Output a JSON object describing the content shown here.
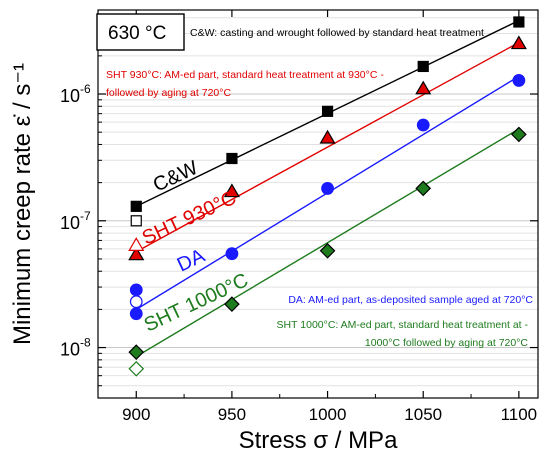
{
  "chart_data": {
    "type": "scatter",
    "xlabel": "Stress σ / MPa",
    "ylabel": "Minimum creep rate  ε̇ / s⁻¹",
    "y_scale": "log",
    "xlim": [
      880,
      1110
    ],
    "ylim": [
      4e-09,
      4.6e-06
    ],
    "x_ticks": [
      {
        "value": 900,
        "label": "900"
      },
      {
        "value": 950,
        "label": "950"
      },
      {
        "value": 1000,
        "label": "1000"
      },
      {
        "value": 1050,
        "label": "1050"
      },
      {
        "value": 1100,
        "label": "1100"
      }
    ],
    "y_ticks": [
      {
        "value": 1e-08,
        "base": "10",
        "exp": "-8"
      },
      {
        "value": 1e-07,
        "base": "10",
        "exp": "-7"
      },
      {
        "value": 1e-06,
        "base": "10",
        "exp": "-6"
      }
    ],
    "grid": "horizontal",
    "temperature_box": "630 °C",
    "series": [
      {
        "name": "C&W",
        "color": "#000000",
        "marker": "square",
        "filled": {
          "x": [
            900,
            950,
            1000,
            1050,
            1100
          ],
          "y": [
            1.3e-07,
            3.1e-07,
            7.3e-07,
            1.65e-06,
            3.7e-06
          ]
        },
        "open": {
          "x": [
            900
          ],
          "y": [
            1e-07
          ]
        },
        "fit": {
          "x": [
            900,
            1100
          ],
          "y": [
            1.3e-07,
            3.8e-06
          ]
        }
      },
      {
        "name": "SHT 930°C",
        "color": "#e00000",
        "marker": "triangle",
        "filled": {
          "x": [
            900,
            950,
            1000,
            1050,
            1100
          ],
          "y": [
            5.4e-08,
            1.7e-07,
            4.5e-07,
            1.1e-06,
            2.5e-06
          ]
        },
        "open": {
          "x": [
            900
          ],
          "y": [
            6.4e-08
          ]
        },
        "fit": {
          "x": [
            900,
            1100
          ],
          "y": [
            5.7e-08,
            2.55e-06
          ]
        }
      },
      {
        "name": "DA",
        "color": "#1a1aff",
        "marker": "circle",
        "filled": {
          "x": [
            900,
            950,
            1000,
            1050,
            1100
          ],
          "y": [
            1.85e-08,
            5.5e-08,
            1.8e-07,
            5.7e-07,
            1.28e-06
          ]
        },
        "open": {
          "x": [
            900
          ],
          "y": [
            2.3e-08
          ]
        },
        "extra_filled": {
          "x": [
            900
          ],
          "y": [
            2.85e-08
          ]
        },
        "fit": {
          "x": [
            900,
            1100
          ],
          "y": [
            2e-08,
            1.38e-06
          ]
        }
      },
      {
        "name": "SHT 1000°C",
        "color": "#1e7b1e",
        "marker": "diamond",
        "filled": {
          "x": [
            900,
            950,
            1000,
            1050,
            1100
          ],
          "y": [
            9.2e-09,
            2.2e-08,
            5.8e-08,
            1.8e-07,
            4.8e-07
          ]
        },
        "open": {
          "x": [
            900
          ],
          "y": [
            6.8e-09
          ]
        },
        "fit": {
          "x": [
            900,
            1100
          ],
          "y": [
            8.5e-09,
            5.3e-07
          ]
        }
      }
    ],
    "series_labels": [
      {
        "text": "C&W",
        "color": "#000000"
      },
      {
        "text": "SHT 930°C",
        "color": "#e00000"
      },
      {
        "text": "DA",
        "color": "#1a1aff"
      },
      {
        "text": "SHT 1000°C",
        "color": "#1e7b1e"
      }
    ],
    "annotations": [
      {
        "lines": [
          "C&W: casting and wrought followed by standard heat treatment"
        ],
        "color": "#000000"
      },
      {
        "lines": [
          "SHT 930°C: AM-ed part, standard heat treatment at 930°C -",
          "followed by aging at 720°C"
        ],
        "color": "#e00000"
      },
      {
        "lines": [
          "DA: AM-ed part, as-deposited sample aged at 720°C"
        ],
        "color": "#1a1aff"
      },
      {
        "lines": [
          "SHT 1000°C: AM-ed part, standard heat treatment at -",
          "1000°C followed by aging at 720°C"
        ],
        "color": "#1e7b1e"
      }
    ]
  }
}
